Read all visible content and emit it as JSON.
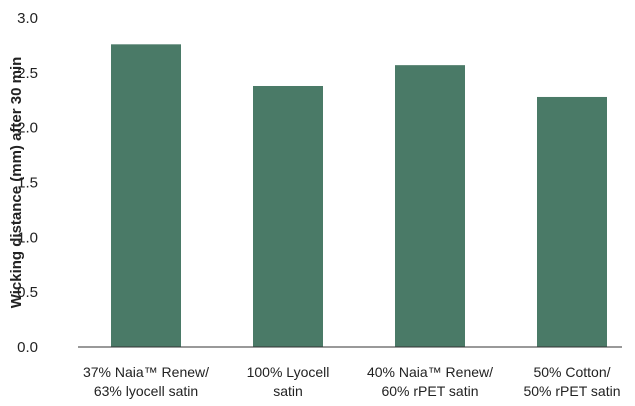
{
  "chart_data": {
    "type": "bar",
    "title": "",
    "xlabel": "",
    "ylabel": "Wicking distance (mm) after 30 min",
    "categories": [
      [
        "37% Naia™ Renew/",
        "63% lyocell satin"
      ],
      [
        "100% Lyocell",
        "satin"
      ],
      [
        "40% Naia™ Renew/",
        "60% rPET satin"
      ],
      [
        "50% Cotton/",
        "50% rPET satin"
      ]
    ],
    "values": [
      2.76,
      2.38,
      2.57,
      2.28
    ],
    "ylim": [
      0,
      3.0
    ],
    "yticks": [
      "0.0",
      "0.5",
      "1.0",
      "1.5",
      "2.0",
      "2.5",
      "3.0"
    ],
    "grid": false,
    "legend": "none",
    "bar_color": "#4a7a67",
    "axis_color": "#333333"
  }
}
